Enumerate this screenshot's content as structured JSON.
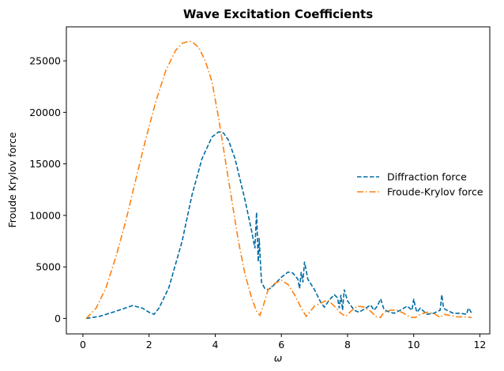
{
  "chart_data": {
    "type": "line",
    "title": "Wave Excitation Coefficients",
    "xlabel": "ω",
    "ylabel": "Froude Krylov force",
    "xlim": [
      -0.5,
      12.3
    ],
    "ylim": [
      -1500,
      28300
    ],
    "xticks": [
      0,
      2,
      4,
      6,
      8,
      10,
      12
    ],
    "yticks": [
      0,
      5000,
      10000,
      15000,
      20000,
      25000
    ],
    "grid": false,
    "legend_position": "center-right",
    "series": [
      {
        "name": "Diffraction force",
        "color": "#006ba4",
        "dash": "dashed",
        "x": [
          0.1,
          0.5,
          1.0,
          1.5,
          1.8,
          2.0,
          2.15,
          2.3,
          2.6,
          3.0,
          3.3,
          3.6,
          3.9,
          4.1,
          4.25,
          4.4,
          4.6,
          4.9,
          5.1,
          5.2,
          5.25,
          5.3,
          5.33,
          5.36,
          5.4,
          5.5,
          5.6,
          5.7,
          5.85,
          6.0,
          6.2,
          6.35,
          6.5,
          6.55,
          6.6,
          6.65,
          6.7,
          6.8,
          7.0,
          7.2,
          7.3,
          7.45,
          7.6,
          7.7,
          7.75,
          7.8,
          7.85,
          7.9,
          8.0,
          8.2,
          8.35,
          8.5,
          8.7,
          8.8,
          8.9,
          9.0,
          9.05,
          9.1,
          9.2,
          9.4,
          9.6,
          9.8,
          9.95,
          10.0,
          10.05,
          10.1,
          10.2,
          10.4,
          10.6,
          10.8,
          10.85,
          10.9,
          11.0,
          11.2,
          11.4,
          11.6,
          11.65,
          11.7,
          11.75
        ],
        "values": [
          0,
          200,
          700,
          1250,
          1000,
          600,
          400,
          1000,
          3000,
          7500,
          12000,
          15500,
          17600,
          18100,
          18000,
          17300,
          15500,
          11500,
          8500,
          6800,
          10300,
          5500,
          7800,
          5800,
          3500,
          2900,
          2800,
          3000,
          3500,
          4000,
          4500,
          4400,
          3800,
          2900,
          4500,
          3500,
          5500,
          3800,
          2800,
          1500,
          1100,
          1800,
          2300,
          2000,
          1000,
          2300,
          800,
          2800,
          1700,
          800,
          600,
          900,
          1300,
          800,
          1200,
          1900,
          1400,
          900,
          700,
          500,
          800,
          1200,
          800,
          1900,
          1100,
          600,
          1000,
          400,
          500,
          800,
          2300,
          1000,
          800,
          500,
          500,
          400,
          1000,
          800,
          500
        ]
      },
      {
        "name": "Froude-Krylov force",
        "color": "#ff800e",
        "dash": "dashdot",
        "x": [
          0.1,
          0.4,
          0.7,
          1.0,
          1.3,
          1.6,
          1.9,
          2.2,
          2.5,
          2.8,
          3.0,
          3.2,
          3.3,
          3.5,
          3.7,
          3.9,
          4.1,
          4.3,
          4.5,
          4.7,
          4.9,
          5.1,
          5.25,
          5.35,
          5.45,
          5.6,
          5.8,
          6.0,
          6.2,
          6.4,
          6.6,
          6.75,
          6.85,
          7.0,
          7.2,
          7.4,
          7.6,
          7.8,
          7.95,
          8.1,
          8.3,
          8.5,
          8.7,
          8.85,
          9.0,
          9.1,
          9.3,
          9.5,
          9.7,
          9.9,
          10.05,
          10.2,
          10.4,
          10.6,
          10.8,
          10.9,
          11.1,
          11.3,
          11.5,
          11.75
        ],
        "values": [
          0,
          1000,
          3000,
          6000,
          9500,
          13500,
          17400,
          21000,
          24000,
          26000,
          26700,
          26900,
          26850,
          26300,
          25000,
          23000,
          19500,
          15500,
          11500,
          7500,
          4300,
          2000,
          700,
          300,
          1200,
          2800,
          3400,
          3700,
          3300,
          2300,
          1000,
          200,
          600,
          1200,
          1500,
          1800,
          1200,
          500,
          200,
          700,
          1200,
          1100,
          700,
          200,
          100,
          600,
          800,
          800,
          500,
          100,
          100,
          400,
          600,
          500,
          100,
          400,
          300,
          150,
          150,
          100
        ]
      }
    ]
  }
}
